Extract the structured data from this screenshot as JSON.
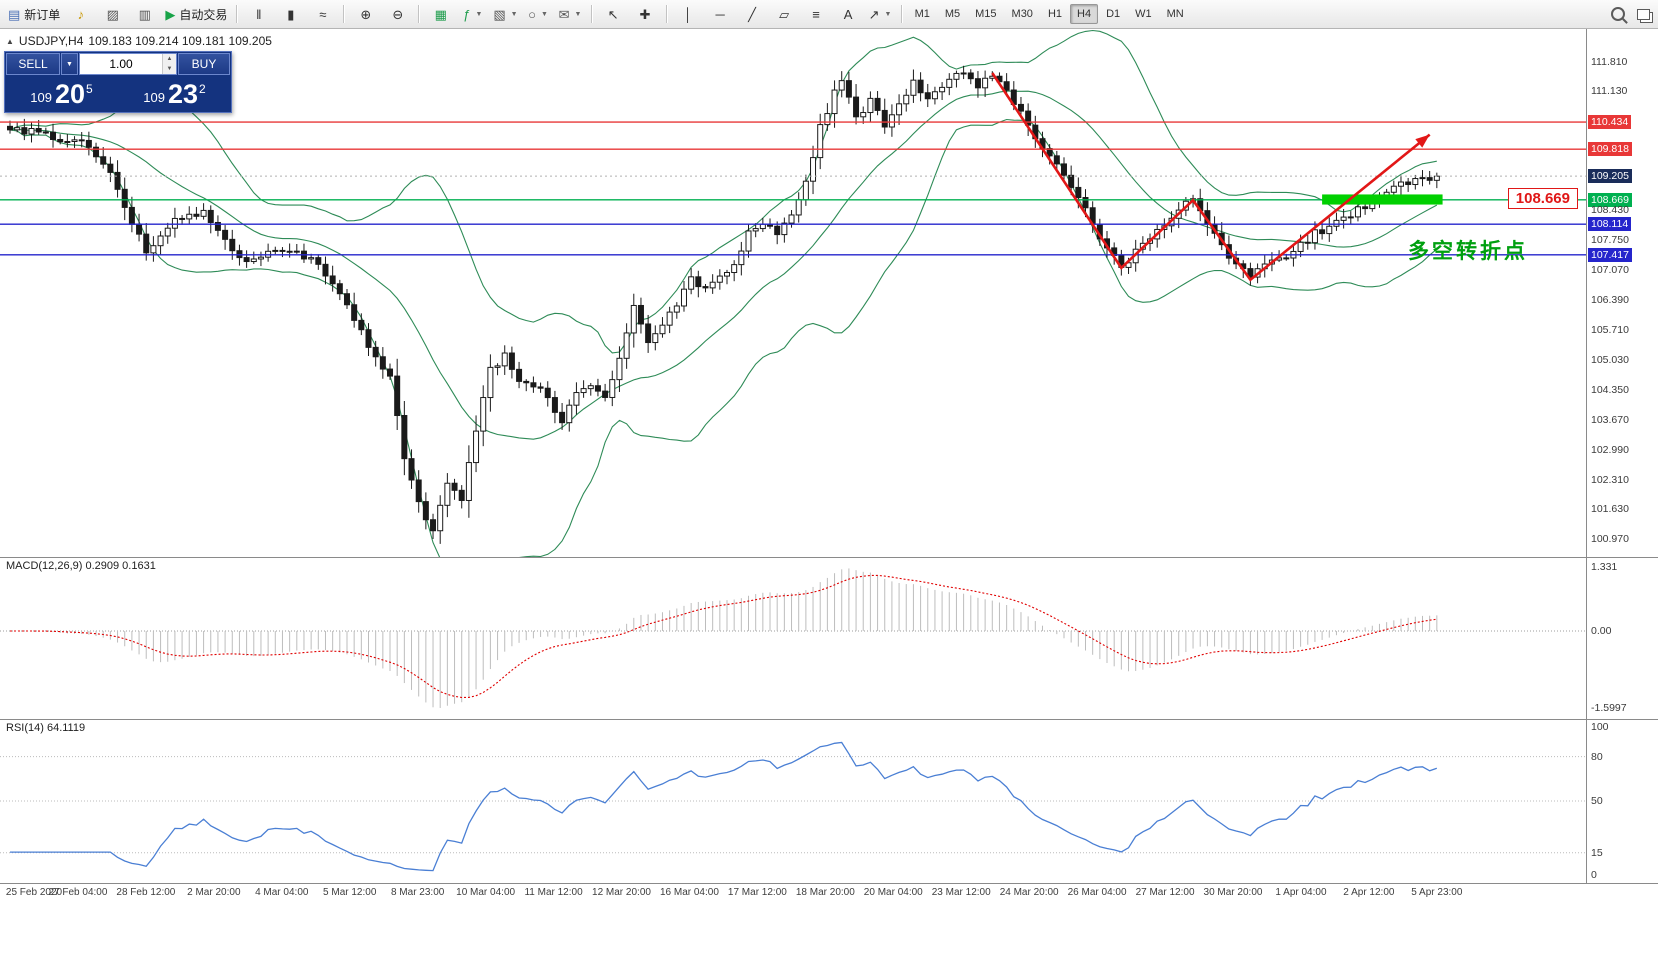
{
  "toolbar": {
    "items": [
      {
        "kind": "labeled",
        "name": "new-order-button",
        "icon": "new-order-icon",
        "glyph": "▤",
        "glyph_color": "#4a6fb5",
        "label": "新订单"
      },
      {
        "kind": "icon",
        "name": "sound-alert-icon",
        "glyph": "♪",
        "glyph_color": "#c99700"
      },
      {
        "kind": "icon",
        "name": "print-icon",
        "glyph": "▨",
        "glyph_color": "#555555"
      },
      {
        "kind": "icon",
        "name": "data-window-icon",
        "glyph": "▥",
        "glyph_color": "#555555"
      },
      {
        "kind": "labeled",
        "name": "auto-trading-button",
        "icon": "play-icon",
        "glyph": "▶",
        "glyph_color": "#18a348",
        "label": "自动交易"
      },
      {
        "kind": "sep"
      },
      {
        "kind": "icon",
        "name": "bar-chart-icon",
        "glyph": "‖",
        "glyph_color": "#333333"
      },
      {
        "kind": "icon",
        "name": "candlestick-chart-icon",
        "glyph": "▮",
        "glyph_color": "#333333"
      },
      {
        "kind": "icon",
        "name": "line-chart-icon",
        "glyph": "≈",
        "glyph_color": "#333333"
      },
      {
        "kind": "sep"
      },
      {
        "kind": "icon",
        "name": "zoom-in-icon",
        "glyph": "⊕",
        "glyph_color": "#333333"
      },
      {
        "kind": "icon",
        "name": "zoom-out-icon",
        "glyph": "⊖",
        "glyph_color": "#333333"
      },
      {
        "kind": "sep"
      },
      {
        "kind": "icon",
        "name": "grid-icon",
        "glyph": "▦",
        "glyph_color": "#1f9d4d"
      },
      {
        "kind": "icon",
        "name": "indicators-icon",
        "glyph": "ƒ",
        "glyph_color": "#1f9d4d",
        "dropdown": true
      },
      {
        "kind": "icon",
        "name": "templates-icon",
        "glyph": "▧",
        "glyph_color": "#555555",
        "dropdown": true
      },
      {
        "kind": "icon",
        "name": "period-icon",
        "glyph": "○",
        "glyph_color": "#555555",
        "dropdown": true
      },
      {
        "kind": "icon",
        "name": "alerts-icon",
        "glyph": "✉",
        "glyph_color": "#555555",
        "dropdown": true
      },
      {
        "kind": "sep"
      },
      {
        "kind": "icon",
        "name": "cursor-icon",
        "glyph": "↖",
        "glyph_color": "#333333"
      },
      {
        "kind": "icon",
        "name": "crosshair-icon",
        "glyph": "✚",
        "glyph_color": "#333333"
      },
      {
        "kind": "sep"
      },
      {
        "kind": "icon",
        "name": "vertical-line-icon",
        "glyph": "│",
        "glyph_color": "#333333"
      },
      {
        "kind": "icon",
        "name": "horizontal-line-icon",
        "glyph": "─",
        "glyph_color": "#333333"
      },
      {
        "kind": "icon",
        "name": "trendline-icon",
        "glyph": "╱",
        "glyph_color": "#333333"
      },
      {
        "kind": "icon",
        "name": "channel-icon",
        "glyph": "▱",
        "glyph_color": "#333333"
      },
      {
        "kind": "icon",
        "name": "fibonacci-icon",
        "glyph": "≡",
        "glyph_color": "#333333"
      },
      {
        "kind": "icon",
        "name": "text-icon",
        "glyph": "A",
        "glyph_color": "#333333"
      },
      {
        "kind": "icon",
        "name": "arrows-icon",
        "glyph": "↗",
        "glyph_color": "#333333",
        "dropdown": true
      },
      {
        "kind": "sep"
      },
      {
        "kind": "tf",
        "name": "timeframe-m1",
        "label": "M1"
      },
      {
        "kind": "tf",
        "name": "timeframe-m5",
        "label": "M5"
      },
      {
        "kind": "tf",
        "name": "timeframe-m15",
        "label": "M15"
      },
      {
        "kind": "tf",
        "name": "timeframe-m30",
        "label": "M30"
      },
      {
        "kind": "tf",
        "name": "timeframe-h1",
        "label": "H1"
      },
      {
        "kind": "tf",
        "name": "timeframe-h4",
        "label": "H4",
        "active": true
      },
      {
        "kind": "tf",
        "name": "timeframe-d1",
        "label": "D1"
      },
      {
        "kind": "tf",
        "name": "timeframe-w1",
        "label": "W1"
      },
      {
        "kind": "tf",
        "name": "timeframe-mn",
        "label": "MN"
      }
    ]
  },
  "order_panel": {
    "sell_label": "SELL",
    "buy_label": "BUY",
    "volume": "1.00",
    "sell_price": {
      "small": "109",
      "big": "20",
      "sup": "5"
    },
    "buy_price": {
      "small": "109",
      "big": "23",
      "sup": "2"
    }
  },
  "chart": {
    "title_symbol": "USDJPY,H4",
    "title_ohlc": "109.183 109.214 109.181 109.205",
    "annotation": "多空转折点",
    "annotation_color": "#00a010",
    "price_tag": "108.669"
  },
  "chart_data": {
    "type": "candlestick",
    "symbol": "USDJPY",
    "timeframe": "H4",
    "ohlc_current": {
      "open": 109.183,
      "high": 109.214,
      "low": 109.181,
      "close": 109.205
    },
    "y_axis": {
      "min": 100.55,
      "max": 112.55,
      "tick_step": 0.68
    },
    "candles": 200,
    "noise": 0.09,
    "last_close": 109.205,
    "close_path": [
      [
        0,
        110.3
      ],
      [
        6,
        110.1
      ],
      [
        10,
        109.95
      ],
      [
        14,
        109.25
      ],
      [
        17,
        108.2
      ],
      [
        19,
        107.45
      ],
      [
        23,
        108.2
      ],
      [
        27,
        108.35
      ],
      [
        30,
        107.8
      ],
      [
        33,
        107.2
      ],
      [
        36,
        107.45
      ],
      [
        39,
        107.55
      ],
      [
        42,
        107.3
      ],
      [
        45,
        106.8
      ],
      [
        48,
        105.9
      ],
      [
        51,
        105.1
      ],
      [
        53,
        104.7
      ],
      [
        55,
        102.7
      ],
      [
        57,
        101.8
      ],
      [
        59,
        101.15
      ],
      [
        61,
        102.3
      ],
      [
        63,
        101.9
      ],
      [
        65,
        103.4
      ],
      [
        67,
        104.8
      ],
      [
        69,
        105.1
      ],
      [
        71,
        104.6
      ],
      [
        73,
        104.5
      ],
      [
        75,
        104.1
      ],
      [
        77,
        103.6
      ],
      [
        79,
        104.3
      ],
      [
        81,
        104.4
      ],
      [
        83,
        104.2
      ],
      [
        85,
        105.0
      ],
      [
        87,
        106.2
      ],
      [
        89,
        105.4
      ],
      [
        91,
        105.9
      ],
      [
        93,
        106.2
      ],
      [
        95,
        106.9
      ],
      [
        97,
        106.6
      ],
      [
        99,
        106.95
      ],
      [
        101,
        107.2
      ],
      [
        103,
        107.9
      ],
      [
        105,
        108.15
      ],
      [
        107,
        107.9
      ],
      [
        109,
        108.4
      ],
      [
        111,
        109.1
      ],
      [
        113,
        110.3
      ],
      [
        115,
        111.1
      ],
      [
        116,
        111.35
      ],
      [
        118,
        110.55
      ],
      [
        120,
        110.9
      ],
      [
        122,
        110.35
      ],
      [
        124,
        110.8
      ],
      [
        126,
        111.4
      ],
      [
        128,
        110.95
      ],
      [
        130,
        111.2
      ],
      [
        133,
        111.6
      ],
      [
        135,
        111.3
      ],
      [
        137,
        111.5
      ],
      [
        139,
        111.15
      ],
      [
        141,
        110.6
      ],
      [
        144,
        109.9
      ],
      [
        147,
        109.3
      ],
      [
        150,
        108.4
      ],
      [
        153,
        107.6
      ],
      [
        155,
        107.15
      ],
      [
        157,
        107.5
      ],
      [
        160,
        107.95
      ],
      [
        163,
        108.45
      ],
      [
        165,
        108.65
      ],
      [
        167,
        108.1
      ],
      [
        170,
        107.4
      ],
      [
        173,
        106.95
      ],
      [
        176,
        107.25
      ],
      [
        179,
        107.5
      ],
      [
        182,
        107.9
      ],
      [
        185,
        108.15
      ],
      [
        188,
        108.45
      ],
      [
        191,
        108.7
      ],
      [
        194,
        109.0
      ],
      [
        197,
        109.15
      ],
      [
        199,
        109.205
      ]
    ],
    "bollinger": {
      "period": 20,
      "deviation": 2,
      "color": "#2e8b57"
    },
    "level_lines": [
      {
        "price": 110.434,
        "color": "#e83737"
      },
      {
        "price": 109.818,
        "color": "#e83737"
      },
      {
        "price": 108.669,
        "color": "#00b050"
      },
      {
        "price": 108.114,
        "color": "#2525cc"
      },
      {
        "price": 107.417,
        "color": "#2525cc"
      }
    ],
    "current_price_line": {
      "price": 109.205,
      "color": "#b0b0b0"
    },
    "highlight_zone": {
      "from_index": 183,
      "to_index": 199.8,
      "price_top": 108.79,
      "price_bottom": 108.56,
      "color": "#00d000"
    },
    "trend_path": {
      "color": "#e21717",
      "points": [
        [
          137,
          111.55
        ],
        [
          155,
          107.12
        ],
        [
          165,
          108.66
        ],
        [
          173,
          106.85
        ],
        [
          198,
          110.15
        ]
      ]
    },
    "price_labels": [
      {
        "text": "111.810",
        "price": 111.81,
        "kind": "plain"
      },
      {
        "text": "111.130",
        "price": 111.13,
        "kind": "plain"
      },
      {
        "text": "110.434",
        "price": 110.434,
        "kind": "red"
      },
      {
        "text": "109.818",
        "price": 109.818,
        "kind": "red"
      },
      {
        "text": "109.205",
        "price": 109.205,
        "kind": "current"
      },
      {
        "text": "108.669",
        "price": 108.669,
        "kind": "green"
      },
      {
        "text": "108.430",
        "price": 108.43,
        "kind": "plain"
      },
      {
        "text": "108.114",
        "price": 108.114,
        "kind": "blue"
      },
      {
        "text": "107.750",
        "price": 107.75,
        "kind": "plain"
      },
      {
        "text": "107.417",
        "price": 107.417,
        "kind": "blue"
      },
      {
        "text": "107.070",
        "price": 107.07,
        "kind": "plain"
      },
      {
        "text": "106.390",
        "price": 106.39,
        "kind": "plain"
      },
      {
        "text": "105.710",
        "price": 105.71,
        "kind": "plain"
      },
      {
        "text": "105.030",
        "price": 105.03,
        "kind": "plain"
      },
      {
        "text": "104.350",
        "price": 104.35,
        "kind": "plain"
      },
      {
        "text": "103.670",
        "price": 103.67,
        "kind": "plain"
      },
      {
        "text": "102.990",
        "price": 102.99,
        "kind": "plain"
      },
      {
        "text": "102.310",
        "price": 102.31,
        "kind": "plain"
      },
      {
        "text": "101.630",
        "price": 101.63,
        "kind": "plain"
      },
      {
        "text": "100.970",
        "price": 100.97,
        "kind": "plain"
      }
    ],
    "subcharts": [
      {
        "type": "macd_histogram",
        "label": "MACD(12,26,9) 0.2909 0.1631",
        "params": [
          12,
          26,
          9
        ],
        "macd_value": 0.2909,
        "signal_value": 0.1631,
        "histogram_color": "#bdbdbd",
        "signal_color": "#e00000",
        "scale_labels": [
          {
            "text": "1.331",
            "value": 1.331
          },
          {
            "text": "0.00",
            "value": 0
          },
          {
            "text": "-1.5997",
            "value": -1.5997
          }
        ]
      },
      {
        "type": "rsi_line",
        "label": "RSI(14) 64.1119",
        "period": 14,
        "value": 64.1119,
        "line_color": "#4a7fd4",
        "levels": [
          80,
          50,
          15
        ],
        "scale_labels": [
          {
            "text": "100",
            "value": 100
          },
          {
            "text": "80",
            "value": 80
          },
          {
            "text": "50",
            "value": 50
          },
          {
            "text": "15",
            "value": 15
          },
          {
            "text": "0",
            "value": 0
          }
        ]
      }
    ]
  },
  "time_axis": {
    "labels": [
      "25 Feb 2020",
      "27 Feb 04:00",
      "28 Feb 12:00",
      "2 Mar 20:00",
      "4 Mar 04:00",
      "5 Mar 12:00",
      "8 Mar 23:00",
      "10 Mar 04:00",
      "11 Mar 12:00",
      "12 Mar 20:00",
      "16 Mar 04:00",
      "17 Mar 12:00",
      "18 Mar 20:00",
      "20 Mar 04:00",
      "23 Mar 12:00",
      "24 Mar 20:00",
      "26 Mar 04:00",
      "27 Mar 12:00",
      "30 Mar 20:00",
      "1 Apr 04:00",
      "2 Apr 12:00",
      "5 Apr 23:00"
    ]
  }
}
